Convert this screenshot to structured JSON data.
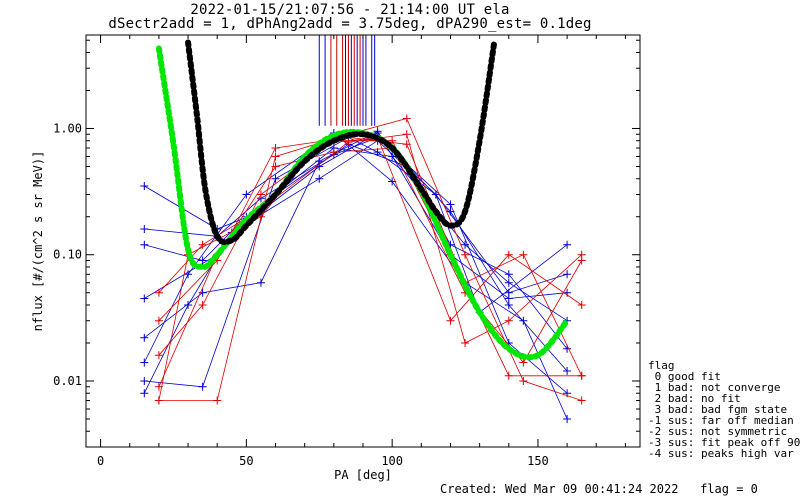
{
  "chart_data": {
    "type": "scatter",
    "title": "2022-01-15/21:07:56 - 21:14:00 UT ela",
    "subtitle": "dSectr2add = 1, dPhAng2add = 3.75deg, dPA290_est=   0.1deg",
    "xlabel": "PA [deg]",
    "ylabel": "nflux [#/(cm^2 s sr MeV)]",
    "xlim": [
      -5,
      185
    ],
    "ylim": [
      0.003,
      5.5
    ],
    "yscale": "log",
    "xticks": [
      {
        "v": 0,
        "label": "0"
      },
      {
        "v": 50,
        "label": "50"
      },
      {
        "v": 100,
        "label": "100"
      },
      {
        "v": 150,
        "label": "150"
      }
    ],
    "yticks": [
      {
        "v": 1.0,
        "label": "1.00"
      },
      {
        "v": 0.1,
        "label": "0.10"
      },
      {
        "v": 0.01,
        "label": "0.01"
      }
    ],
    "vlines": {
      "blue": [
        75,
        77,
        84,
        86,
        88,
        90,
        91,
        93,
        94
      ],
      "red": [
        79,
        81,
        83,
        85,
        87,
        89
      ]
    },
    "fits": [
      {
        "color": "#00e600",
        "x": [
          20,
          25,
          30,
          35,
          40,
          50,
          60,
          70,
          80,
          90,
          100,
          110,
          120,
          130,
          140,
          150,
          160
        ],
        "y": [
          4.3,
          0.75,
          0.11,
          0.08,
          0.1,
          0.19,
          0.3,
          0.6,
          0.88,
          0.92,
          0.7,
          0.32,
          0.1,
          0.035,
          0.018,
          0.016,
          0.03
        ]
      },
      {
        "color": "#000000",
        "x": [
          30,
          33,
          36,
          40,
          45,
          50,
          60,
          70,
          80,
          90,
          100,
          110,
          115,
          120,
          125,
          130,
          135
        ],
        "y": [
          4.8,
          1.3,
          0.32,
          0.14,
          0.13,
          0.17,
          0.3,
          0.55,
          0.8,
          0.9,
          0.7,
          0.33,
          0.22,
          0.17,
          0.22,
          0.8,
          4.8
        ]
      }
    ],
    "blue_series": [
      {
        "x": [
          15,
          40,
          55,
          75,
          95,
          120,
          140,
          160
        ],
        "y": [
          0.35,
          0.16,
          0.22,
          0.5,
          0.92,
          0.22,
          0.04,
          0.012
        ]
      },
      {
        "x": [
          15,
          40,
          55,
          80,
          95,
          120,
          140,
          160
        ],
        "y": [
          0.16,
          0.14,
          0.28,
          0.62,
          0.85,
          0.25,
          0.02,
          0.008
        ]
      },
      {
        "x": [
          15,
          35,
          50,
          80,
          100,
          125,
          140,
          160
        ],
        "y": [
          0.12,
          0.09,
          0.2,
          0.7,
          0.6,
          0.12,
          0.06,
          0.03
        ]
      },
      {
        "x": [
          15,
          40,
          60,
          85,
          105,
          120,
          140,
          160
        ],
        "y": [
          0.045,
          0.1,
          0.3,
          0.75,
          0.5,
          0.12,
          0.07,
          0.018
        ]
      },
      {
        "x": [
          15,
          35,
          55,
          75,
          95,
          120,
          140,
          160
        ],
        "y": [
          0.022,
          0.05,
          0.06,
          0.55,
          0.95,
          0.1,
          0.045,
          0.05
        ]
      },
      {
        "x": [
          15,
          30,
          50,
          80,
          100,
          125,
          145,
          160
        ],
        "y": [
          0.014,
          0.07,
          0.3,
          0.92,
          0.38,
          0.06,
          0.03,
          0.005
        ]
      },
      {
        "x": [
          15,
          30,
          45,
          75,
          95,
          115,
          140,
          160
        ],
        "y": [
          0.008,
          0.04,
          0.15,
          0.4,
          0.8,
          0.3,
          0.05,
          0.07
        ]
      },
      {
        "x": [
          15,
          35,
          60,
          85,
          95,
          115,
          130,
          160
        ],
        "y": [
          0.01,
          0.009,
          0.4,
          0.85,
          0.65,
          0.3,
          0.035,
          0.12
        ]
      }
    ],
    "red_series": [
      {
        "x": [
          20,
          40,
          60,
          85,
          105,
          125,
          145,
          165
        ],
        "y": [
          0.007,
          0.007,
          0.6,
          0.9,
          1.2,
          0.1,
          0.01,
          0.007
        ]
      },
      {
        "x": [
          20,
          35,
          55,
          80,
          100,
          120,
          140,
          165
        ],
        "y": [
          0.016,
          0.04,
          0.3,
          0.8,
          0.8,
          0.1,
          0.011,
          0.011
        ]
      },
      {
        "x": [
          20,
          40,
          60,
          85,
          105,
          125,
          145,
          165
        ],
        "y": [
          0.03,
          0.09,
          0.7,
          0.85,
          0.75,
          0.06,
          0.1,
          0.011
        ]
      },
      {
        "x": [
          20,
          30,
          55,
          75,
          95,
          120,
          140,
          165
        ],
        "y": [
          0.007,
          0.1,
          0.2,
          0.75,
          0.85,
          0.03,
          0.1,
          0.04
        ]
      },
      {
        "x": [
          20,
          40,
          60,
          80,
          100,
          125,
          145,
          165
        ],
        "y": [
          0.009,
          0.1,
          0.5,
          0.65,
          0.7,
          0.05,
          0.014,
          0.09
        ]
      },
      {
        "x": [
          20,
          35,
          55,
          85,
          105,
          125,
          140,
          165
        ],
        "y": [
          0.05,
          0.12,
          0.23,
          0.78,
          0.9,
          0.02,
          0.03,
          0.1
        ]
      }
    ],
    "legend": {
      "title": "flag",
      "entries": [
        " 0 good fit",
        " 1 bad: not converge",
        " 2 bad: no fit",
        " 3 bad: bad fgm state",
        "-1 sus: far off median",
        "-2 sus: not symmetric",
        "-3 sus: fit peak off 90",
        "-4 sus: peaks high var"
      ]
    }
  },
  "footer": "Created: Wed Mar 09 00:41:24 2022   flag = 0"
}
